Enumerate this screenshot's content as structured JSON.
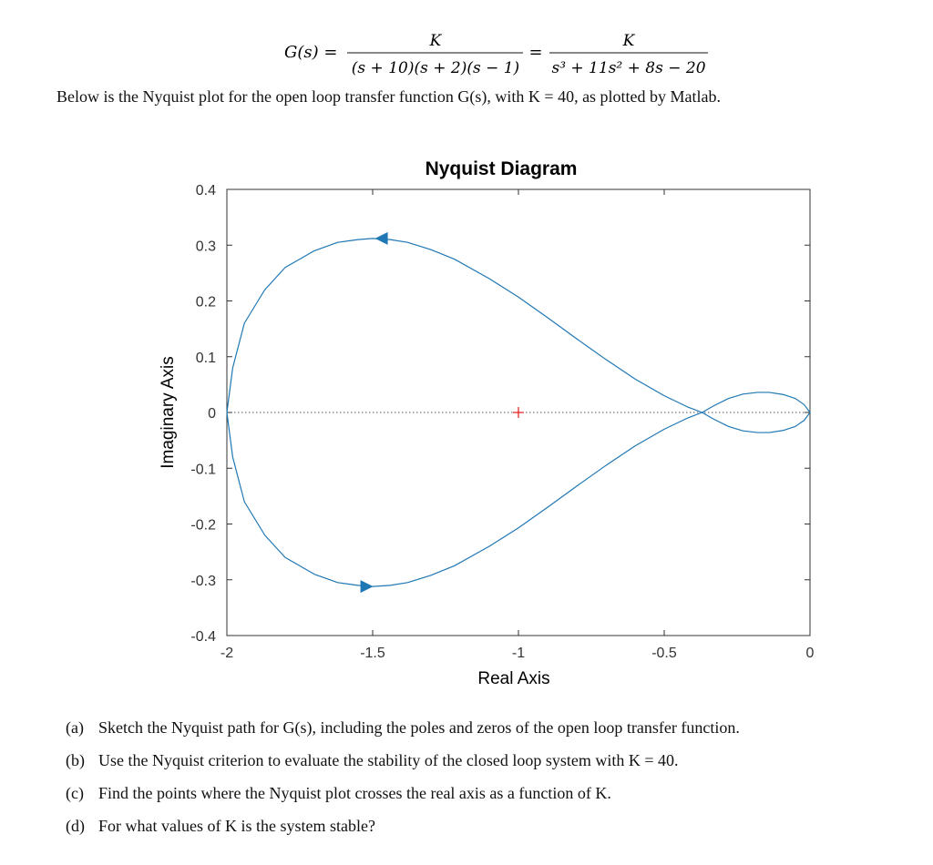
{
  "header": {
    "equation": {
      "lhs": "G(s) =",
      "numerator_1": "K",
      "denominator_1": "(s + 10)(s + 2)(s − 1)",
      "equals": "=",
      "numerator_2": "K",
      "denominator_2": "s³ + 11s² + 8s − 20"
    },
    "intro_text": "Below is the Nyquist plot for the open loop transfer function G(s), with K = 40, as plotted by Matlab."
  },
  "chart_data": {
    "type": "line",
    "title": "Nyquist Diagram",
    "xlabel": "Real Axis",
    "ylabel": "Imaginary Axis",
    "xlim": [
      -2,
      0
    ],
    "ylim": [
      -0.4,
      0.4
    ],
    "x_ticks": [
      "-2",
      "-1.5",
      "-1",
      "-0.5",
      "0"
    ],
    "y_ticks": [
      "0.4",
      "0.3",
      "0.2",
      "0.1",
      "0",
      "-0.1",
      "-0.2",
      "-0.3",
      "-0.4"
    ],
    "grid": false,
    "critical_point": {
      "x": -1,
      "y": 0
    },
    "series": [
      {
        "color": "#1f77b4",
        "x": [
          -2.0,
          -1.98,
          -1.94,
          -1.87,
          -1.8,
          -1.7,
          -1.62,
          -1.55,
          -1.5,
          -1.44,
          -1.38,
          -1.3,
          -1.22,
          -1.1,
          -1.0,
          -0.9,
          -0.8,
          -0.7,
          -0.6,
          -0.5,
          -0.42,
          -0.37,
          -0.33,
          -0.28,
          -0.23,
          -0.18,
          -0.14,
          -0.09,
          -0.05,
          -0.02,
          0.0
        ],
        "y": [
          0.0,
          0.08,
          0.16,
          0.22,
          0.26,
          0.29,
          0.305,
          0.31,
          0.312,
          0.31,
          0.305,
          0.292,
          0.275,
          0.24,
          0.207,
          0.17,
          0.132,
          0.095,
          0.06,
          0.03,
          0.01,
          0.0,
          -0.012,
          -0.025,
          -0.033,
          -0.036,
          -0.036,
          -0.032,
          -0.025,
          -0.014,
          0.0
        ]
      },
      {
        "color": "#1f77b4",
        "x": [
          -2.0,
          -1.98,
          -1.94,
          -1.87,
          -1.8,
          -1.7,
          -1.62,
          -1.55,
          -1.5,
          -1.44,
          -1.38,
          -1.3,
          -1.22,
          -1.1,
          -1.0,
          -0.9,
          -0.8,
          -0.7,
          -0.6,
          -0.5,
          -0.42,
          -0.37,
          -0.33,
          -0.28,
          -0.23,
          -0.18,
          -0.14,
          -0.09,
          -0.05,
          -0.02,
          0.0
        ],
        "y": [
          0.0,
          -0.08,
          -0.16,
          -0.22,
          -0.26,
          -0.29,
          -0.305,
          -0.31,
          -0.312,
          -0.31,
          -0.305,
          -0.292,
          -0.275,
          -0.24,
          -0.207,
          -0.17,
          -0.132,
          -0.095,
          -0.06,
          -0.03,
          -0.01,
          0.0,
          0.012,
          0.025,
          0.033,
          0.036,
          0.036,
          0.032,
          0.025,
          0.014,
          0.0
        ]
      }
    ],
    "arrows": [
      {
        "x": -1.47,
        "y": 0.312,
        "direction": "left"
      },
      {
        "x": -1.52,
        "y": -0.312,
        "direction": "right"
      }
    ]
  },
  "questions": [
    {
      "label": "(a)",
      "text": "Sketch the Nyquist path for G(s), including the poles and zeros of the open loop transfer function."
    },
    {
      "label": "(b)",
      "text": "Use the Nyquist criterion to evaluate the stability of the closed loop system with K = 40."
    },
    {
      "label": "(c)",
      "text": "Find the points where the Nyquist plot crosses the real axis as a function of K."
    },
    {
      "label": "(d)",
      "text": "For what values of K is the system stable?"
    }
  ]
}
